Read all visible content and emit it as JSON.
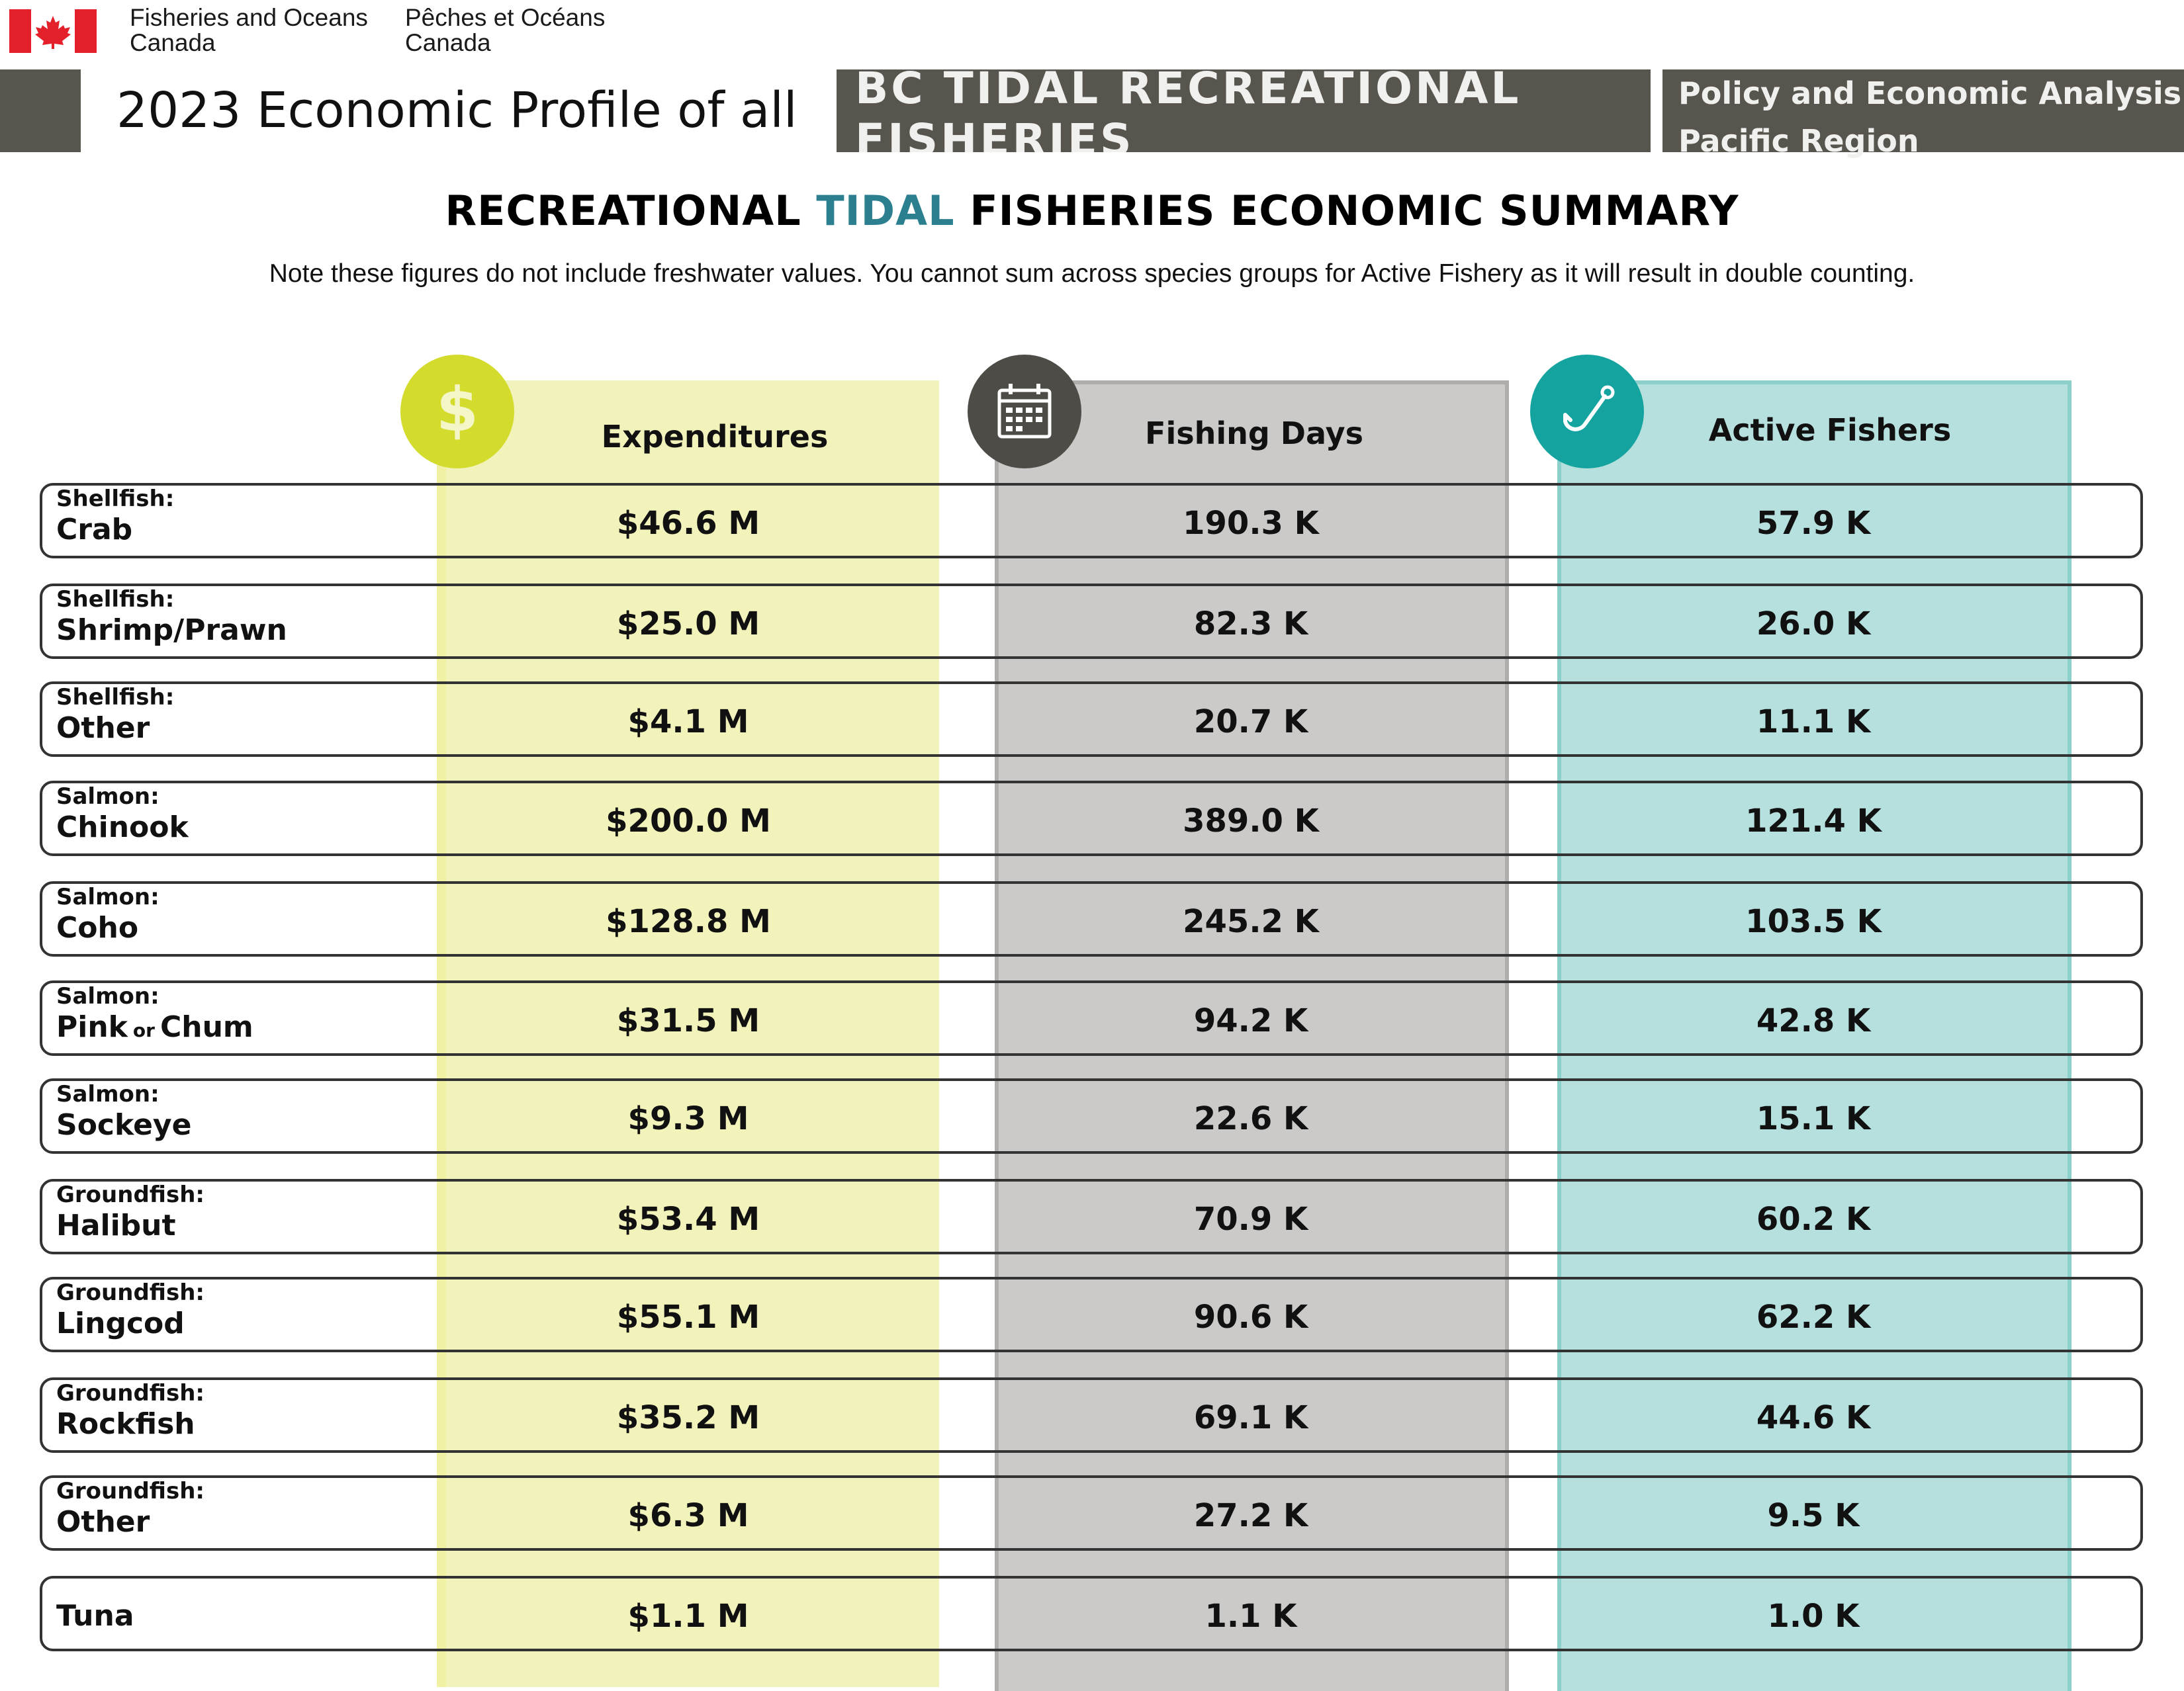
{
  "header": {
    "dept_en_line1": "Fisheries and Oceans",
    "dept_en_line2": "Canada",
    "dept_fr_line1": "Pêches et Océans",
    "dept_fr_line2": "Canada",
    "title": "2023 Economic Profile of all",
    "subtitle_line1": "BC TIDAL RECREATIONAL",
    "subtitle_line2": "FISHERIES",
    "region_line1": "Policy and Economic Analysis,",
    "region_line2": "Pacific Region"
  },
  "summary": {
    "title_part1": "RECREATIONAL",
    "title_accent": "TIDAL",
    "title_part2": "FISHERIES ECONOMIC SUMMARY",
    "note": "Note these figures do not include freshwater values. You cannot sum across species groups for Active Fishery as it will result in double counting."
  },
  "columns": {
    "expenditures": "Expenditures",
    "fishing_days": "Fishing Days",
    "active_fishers": "Active Fishers"
  },
  "icons": {
    "expenditures": "dollar-sign-icon",
    "fishing_days": "calendar-icon",
    "active_fishers": "fish-hook-icon"
  },
  "colors": {
    "header_bar": "#57554d",
    "accent_text": "#2b7f8f",
    "expenditures_bg": "#f2f2bb",
    "expenditures_badge": "#d3dc2c",
    "fishing_days_bg": "#cbcac9",
    "fishing_days_badge": "#4e4c47",
    "active_fishers_bg": "#b6e0dd",
    "active_fishers_badge": "#14a39e"
  },
  "rows": [
    {
      "group": "Shellfish:",
      "species": "Crab",
      "expenditures": "$46.6 M",
      "fishing_days": "190.3 K",
      "active_fishers": "57.9 K"
    },
    {
      "group": "Shellfish:",
      "species": "Shrimp/Prawn",
      "expenditures": "$25.0 M",
      "fishing_days": "82.3 K",
      "active_fishers": "26.0 K"
    },
    {
      "group": "Shellfish:",
      "species": "Other",
      "expenditures": "$4.1 M",
      "fishing_days": "20.7 K",
      "active_fishers": "11.1 K"
    },
    {
      "group": "Salmon:",
      "species": "Chinook",
      "expenditures": "$200.0 M",
      "fishing_days": "389.0 K",
      "active_fishers": "121.4 K"
    },
    {
      "group": "Salmon:",
      "species": "Coho",
      "expenditures": "$128.8 M",
      "fishing_days": "245.2 K",
      "active_fishers": "103.5 K"
    },
    {
      "group": "Salmon:",
      "species": "Pink",
      "species_joiner": "or",
      "species_b": "Chum",
      "expenditures": "$31.5 M",
      "fishing_days": "94.2 K",
      "active_fishers": "42.8 K"
    },
    {
      "group": "Salmon:",
      "species": "Sockeye",
      "expenditures": "$9.3 M",
      "fishing_days": "22.6 K",
      "active_fishers": "15.1 K"
    },
    {
      "group": "Groundfish:",
      "species": "Halibut",
      "expenditures": "$53.4 M",
      "fishing_days": "70.9 K",
      "active_fishers": "60.2 K"
    },
    {
      "group": "Groundfish:",
      "species": "Lingcod",
      "expenditures": "$55.1 M",
      "fishing_days": "90.6 K",
      "active_fishers": "62.2 K"
    },
    {
      "group": "Groundfish:",
      "species": "Rockfish",
      "expenditures": "$35.2 M",
      "fishing_days": "69.1 K",
      "active_fishers": "44.6 K"
    },
    {
      "group": "Groundfish:",
      "species": "Other",
      "expenditures": "$6.3 M",
      "fishing_days": "27.2 K",
      "active_fishers": "9.5 K"
    },
    {
      "group": "",
      "species": "Tuna",
      "expenditures": "$1.1 M",
      "fishing_days": "1.1 K",
      "active_fishers": "1.0 K"
    }
  ]
}
